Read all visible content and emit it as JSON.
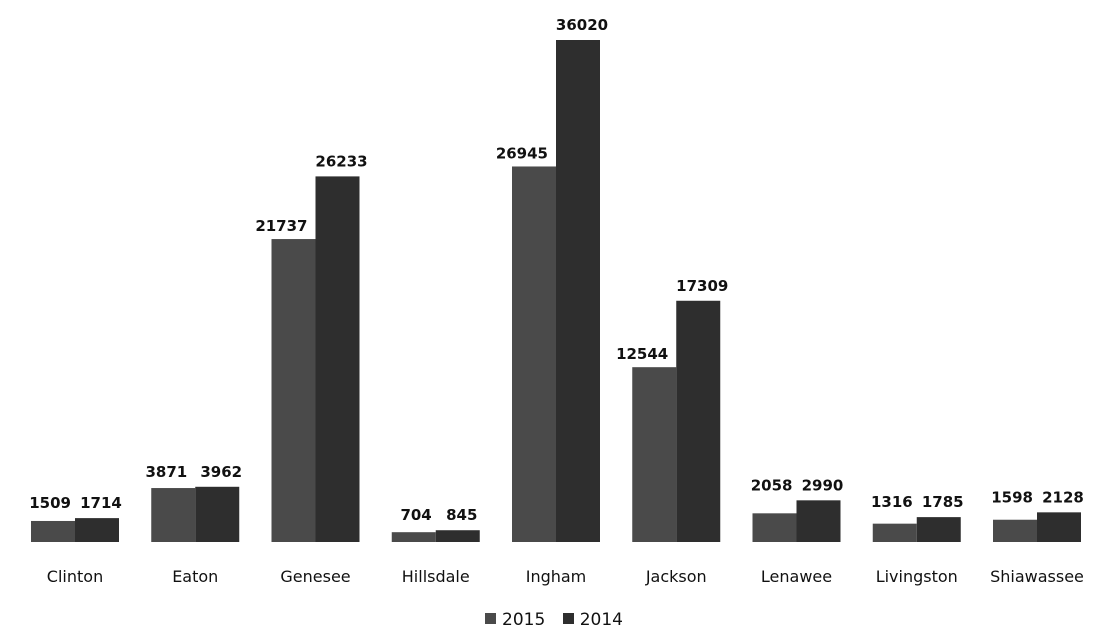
{
  "chart_data": {
    "type": "bar",
    "categories": [
      "Clinton",
      "Eaton",
      "Genesee",
      "Hillsdale",
      "Ingham",
      "Jackson",
      "Lenawee",
      "Livingston",
      "Shiawassee"
    ],
    "series": [
      {
        "name": "2015",
        "values": [
          1509,
          3871,
          21737,
          704,
          26945,
          12544,
          2058,
          1316,
          1598
        ],
        "color": "#4a4a4a"
      },
      {
        "name": "2014",
        "values": [
          1714,
          3962,
          26233,
          845,
          36020,
          17309,
          2990,
          1785,
          2128
        ],
        "color": "#2e2e2e"
      }
    ],
    "data_labels": true,
    "grid": false,
    "legend_position": "bottom-center"
  }
}
